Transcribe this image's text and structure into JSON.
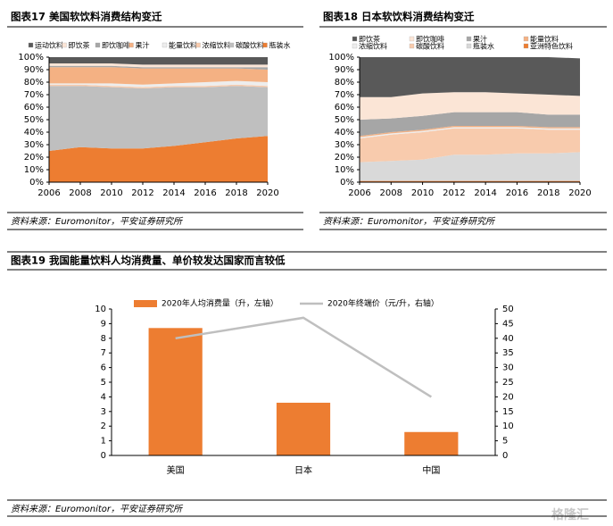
{
  "chart_data": [
    {
      "type": "area",
      "stacked": true,
      "title": "图表17  美国软饮料消费结构变迁",
      "x": [
        2006,
        2008,
        2010,
        2012,
        2014,
        2016,
        2018,
        2020
      ],
      "xlim": [
        2006,
        2020
      ],
      "xticks": [
        2006,
        2008,
        2010,
        2012,
        2014,
        2016,
        2018,
        2020
      ],
      "ylim": [
        0,
        100
      ],
      "yticks": [
        {
          "value": 0,
          "label": "0%"
        },
        {
          "value": 10,
          "label": "10%"
        },
        {
          "value": 20,
          "label": "20%"
        },
        {
          "value": 30,
          "label": "30%"
        },
        {
          "value": 40,
          "label": "40%"
        },
        {
          "value": 50,
          "label": "50%"
        },
        {
          "value": 60,
          "label": "60%"
        },
        {
          "value": 70,
          "label": "70%"
        },
        {
          "value": 80,
          "label": "80%"
        },
        {
          "value": 90,
          "label": "90%"
        },
        {
          "value": 100,
          "label": "100%"
        }
      ],
      "series": [
        {
          "name": "运动饮料",
          "color": "#595959",
          "values": [
            5,
            5,
            5,
            6,
            6,
            6,
            6,
            6
          ]
        },
        {
          "name": "即饮茶",
          "color": "#fbe5d6",
          "values": [
            2,
            2,
            2,
            2,
            2,
            2,
            2,
            2
          ]
        },
        {
          "name": "即饮咖啡",
          "color": "#a6a6a6",
          "values": [
            1,
            1,
            1,
            1,
            1,
            1,
            1,
            2
          ]
        },
        {
          "name": "果汁",
          "color": "#f4b183",
          "values": [
            13,
            13,
            13,
            13,
            12,
            11,
            10,
            10
          ]
        },
        {
          "name": "能量饮料",
          "color": "#ededed",
          "values": [
            1,
            1,
            2,
            2,
            2,
            3,
            3,
            3
          ]
        },
        {
          "name": "浓缩饮料",
          "color": "#f8cbad",
          "values": [
            1,
            1,
            1,
            1,
            1,
            1,
            1,
            1
          ]
        },
        {
          "name": "碳酸饮料",
          "color": "#bfbfbf",
          "values": [
            52,
            49,
            49,
            48,
            47,
            44,
            42,
            39
          ]
        },
        {
          "name": "瓶装水",
          "color": "#ed7d31",
          "values": [
            25,
            28,
            27,
            27,
            29,
            32,
            35,
            37
          ]
        }
      ],
      "source": "资料来源：Euromonitor，平安证券研究所"
    },
    {
      "type": "area",
      "stacked": true,
      "title": "图表18  日本软饮料消费结构变迁",
      "x": [
        2006,
        2008,
        2010,
        2012,
        2014,
        2016,
        2018,
        2020
      ],
      "xlim": [
        2006,
        2020
      ],
      "xticks": [
        2006,
        2008,
        2010,
        2012,
        2014,
        2016,
        2018,
        2020
      ],
      "ylim": [
        0,
        100
      ],
      "yticks": [
        {
          "value": 0,
          "label": "0%"
        },
        {
          "value": 10,
          "label": "10%"
        },
        {
          "value": 20,
          "label": "20%"
        },
        {
          "value": 30,
          "label": "30%"
        },
        {
          "value": 40,
          "label": "40%"
        },
        {
          "value": 50,
          "label": "50%"
        },
        {
          "value": 60,
          "label": "60%"
        },
        {
          "value": 70,
          "label": "70%"
        },
        {
          "value": 80,
          "label": "80%"
        },
        {
          "value": 90,
          "label": "90%"
        },
        {
          "value": 100,
          "label": "100%"
        }
      ],
      "series": [
        {
          "name": "即饮茶",
          "color": "#595959",
          "values": [
            32,
            32,
            29,
            28,
            28,
            29,
            30,
            30
          ]
        },
        {
          "name": "即饮咖啡",
          "color": "#fbe5d6",
          "values": [
            18,
            17,
            18,
            16,
            16,
            15,
            16,
            15
          ]
        },
        {
          "name": "果汁",
          "color": "#a6a6a6",
          "values": [
            13,
            11,
            11,
            11,
            11,
            11,
            10,
            10
          ]
        },
        {
          "name": "能量饮料",
          "color": "#f4b183",
          "values": [
            1,
            1,
            1,
            1,
            1,
            1,
            1,
            1
          ]
        },
        {
          "name": "浓缩饮料",
          "color": "#ededed",
          "values": [
            1,
            1,
            1,
            1,
            1,
            1,
            1,
            1
          ]
        },
        {
          "name": "碳酸饮料",
          "color": "#f8cbad",
          "values": [
            19,
            21,
            22,
            21,
            21,
            20,
            19,
            18
          ]
        },
        {
          "name": "瓶装水",
          "color": "#d9d9d9",
          "values": [
            15,
            16,
            17,
            21,
            21,
            22,
            22,
            23
          ]
        },
        {
          "name": "亚洲特色饮料",
          "color": "#ed7d31",
          "values": [
            1,
            1,
            1,
            1,
            1,
            1,
            1,
            1
          ]
        }
      ],
      "source": "资料来源：Euromonitor，平安证券研究所"
    },
    {
      "type": "bar",
      "title": "图表19  我国能量饮料人均消费量、单价较发达国家而言较低",
      "categories": [
        "美国",
        "日本",
        "中国"
      ],
      "ylim": [
        0,
        10
      ],
      "yticks": [
        0,
        1,
        2,
        3,
        4,
        5,
        6,
        7,
        8,
        9,
        10
      ],
      "y2lim": [
        0,
        50
      ],
      "y2ticks": [
        0,
        5,
        10,
        15,
        20,
        25,
        30,
        35,
        40,
        45,
        50
      ],
      "series": [
        {
          "name": "2020年人均消费量（升，左轴）",
          "type": "bar",
          "color": "#ed7d31",
          "values": [
            8.7,
            3.6,
            1.6
          ]
        },
        {
          "name": "2020年终端价（元/升，右轴）",
          "type": "line",
          "axis": "y2",
          "color": "#bfbfbf",
          "values": [
            40,
            47,
            20
          ]
        }
      ],
      "source": "资料来源：Euromonitor，平安证券研究所"
    }
  ],
  "watermark": "格隆汇"
}
